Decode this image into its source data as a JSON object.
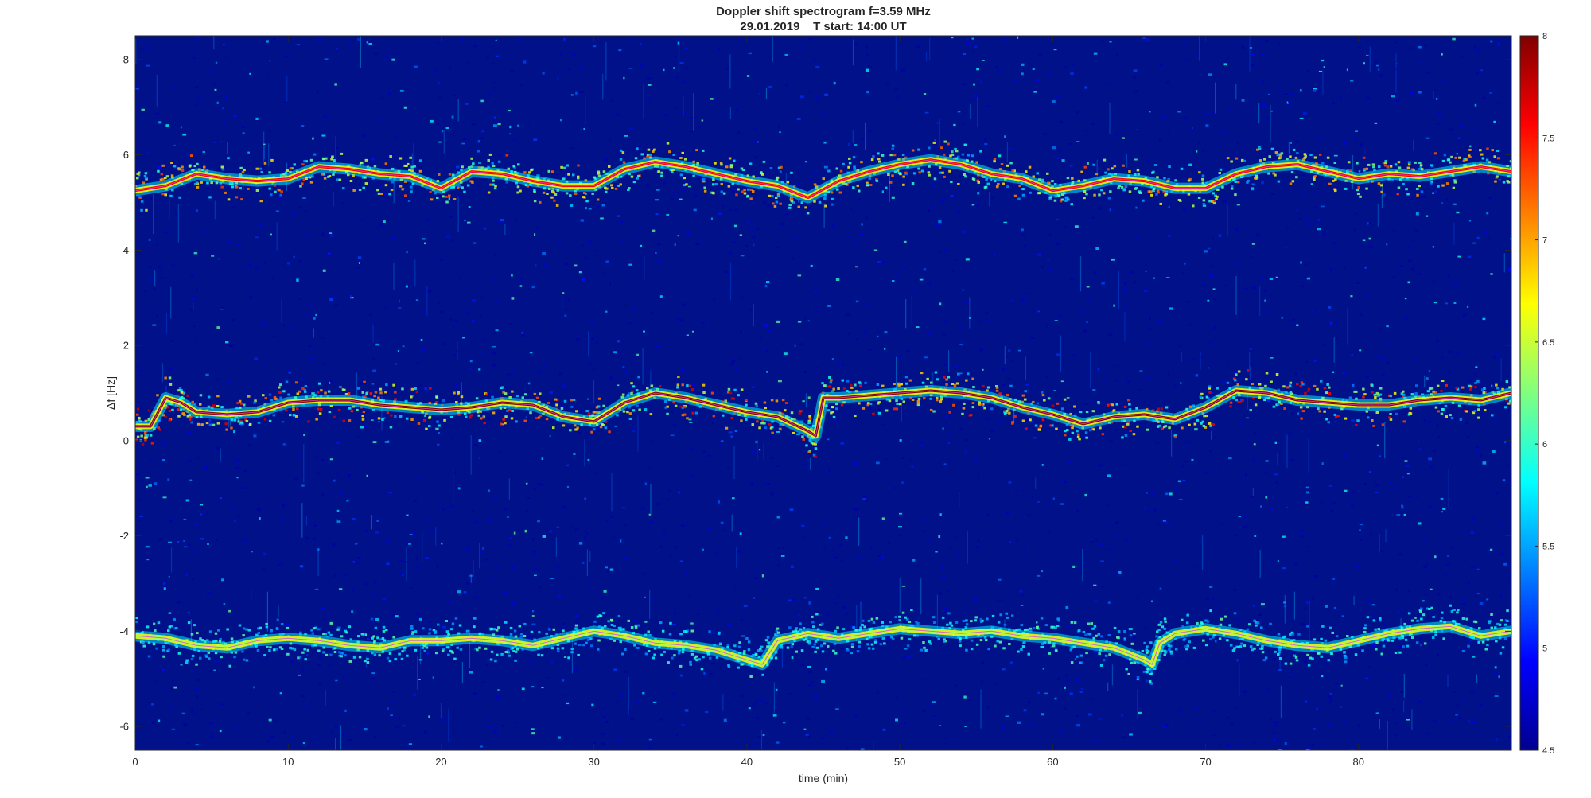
{
  "chart_data": {
    "type": "heatmap",
    "title": "Doppler shift spectrogram f=3.59 MHz",
    "subtitle": "29.01.2019    T start: 14:00 UT",
    "xlabel": "time (min)",
    "ylabel": "Δf [Hz]",
    "xlim": [
      0,
      90
    ],
    "ylim": [
      -6.5,
      8.5
    ],
    "xticks": [
      "0",
      "10",
      "20",
      "30",
      "40",
      "50",
      "60",
      "70",
      "80"
    ],
    "yticks": [
      "-6",
      "-4",
      "-2",
      "0",
      "2",
      "4",
      "6",
      "8"
    ],
    "colorbar": {
      "range": [
        4.5,
        8
      ],
      "ticks": [
        "4.5",
        "5",
        "5.5",
        "6",
        "6.5",
        "7",
        "7.5",
        "8"
      ],
      "colormap": "jet"
    },
    "background_color": "#00118a",
    "grid": false,
    "traces": [
      {
        "name": "upper",
        "x": [
          0,
          2,
          4,
          6,
          8,
          10,
          12,
          14,
          16,
          18,
          20,
          22,
          24,
          26,
          28,
          30,
          32,
          34,
          36,
          38,
          40,
          42,
          44,
          46,
          48,
          50,
          52,
          54,
          56,
          58,
          60,
          62,
          64,
          66,
          68,
          70,
          72,
          74,
          76,
          78,
          80,
          82,
          84,
          86,
          88,
          90
        ],
        "y": [
          5.25,
          5.35,
          5.6,
          5.5,
          5.45,
          5.5,
          5.75,
          5.7,
          5.6,
          5.55,
          5.3,
          5.65,
          5.6,
          5.45,
          5.35,
          5.35,
          5.7,
          5.85,
          5.75,
          5.6,
          5.45,
          5.35,
          5.1,
          5.45,
          5.65,
          5.8,
          5.9,
          5.8,
          5.6,
          5.5,
          5.25,
          5.35,
          5.5,
          5.45,
          5.3,
          5.3,
          5.6,
          5.75,
          5.8,
          5.65,
          5.5,
          5.6,
          5.55,
          5.65,
          5.75,
          5.65
        ],
        "intensity": 7.6
      },
      {
        "name": "middle",
        "x": [
          0,
          1,
          2,
          3,
          4,
          6,
          8,
          10,
          12,
          14,
          16,
          18,
          20,
          22,
          24,
          26,
          28,
          30,
          32,
          34,
          36,
          38,
          40,
          42,
          44,
          44.5,
          45,
          46,
          48,
          50,
          52,
          54,
          56,
          58,
          60,
          62,
          64,
          66,
          68,
          70,
          72,
          74,
          76,
          78,
          80,
          82,
          84,
          86,
          88,
          90
        ],
        "y": [
          0.3,
          0.3,
          0.9,
          0.8,
          0.6,
          0.55,
          0.6,
          0.8,
          0.85,
          0.85,
          0.75,
          0.7,
          0.65,
          0.7,
          0.8,
          0.75,
          0.5,
          0.4,
          0.8,
          1.0,
          0.9,
          0.75,
          0.6,
          0.5,
          0.2,
          0.1,
          0.9,
          0.9,
          0.95,
          1.0,
          1.05,
          1.0,
          0.9,
          0.7,
          0.55,
          0.35,
          0.5,
          0.55,
          0.45,
          0.7,
          1.05,
          1.0,
          0.85,
          0.8,
          0.75,
          0.75,
          0.85,
          0.9,
          0.85,
          1.0
        ],
        "intensity": 8.0
      },
      {
        "name": "lower",
        "x": [
          0,
          2,
          4,
          6,
          8,
          10,
          12,
          14,
          16,
          18,
          20,
          22,
          24,
          26,
          28,
          30,
          32,
          34,
          36,
          38,
          40,
          41,
          42,
          44,
          46,
          48,
          50,
          52,
          54,
          56,
          58,
          60,
          62,
          64,
          66,
          66.5,
          67,
          68,
          70,
          72,
          74,
          76,
          78,
          80,
          82,
          84,
          86,
          88,
          90
        ],
        "y": [
          -4.1,
          -4.15,
          -4.3,
          -4.35,
          -4.2,
          -4.15,
          -4.2,
          -4.3,
          -4.35,
          -4.2,
          -4.2,
          -4.15,
          -4.2,
          -4.3,
          -4.15,
          -4.0,
          -4.1,
          -4.25,
          -4.3,
          -4.4,
          -4.6,
          -4.7,
          -4.2,
          -4.05,
          -4.15,
          -4.05,
          -3.95,
          -4.0,
          -4.05,
          -4.0,
          -4.1,
          -4.15,
          -4.25,
          -4.35,
          -4.6,
          -4.7,
          -4.25,
          -4.05,
          -3.95,
          -4.05,
          -4.2,
          -4.3,
          -4.35,
          -4.2,
          -4.05,
          -3.95,
          -3.9,
          -4.1,
          -4.0
        ],
        "intensity": 6.4
      }
    ]
  }
}
